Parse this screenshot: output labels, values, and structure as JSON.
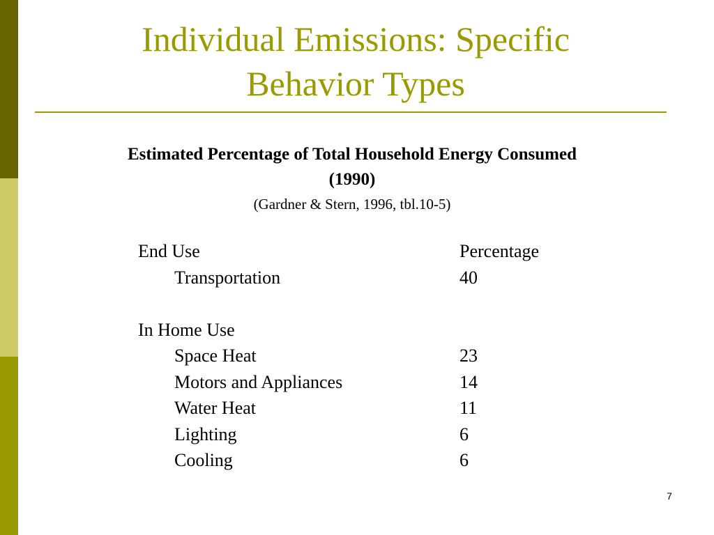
{
  "slide": {
    "title_lines": [
      "Individual Emissions:  Specific",
      "Behavior Types"
    ],
    "subtitle_lines": [
      "Estimated Percentage of Total Household Energy Consumed",
      "(1990)"
    ],
    "citation": "(Gardner & Stern, 1996, tbl.10-5)",
    "page_number": "7",
    "colors": {
      "accent": "#999900",
      "bar_dark": "#666600",
      "bar_light": "#cccc66",
      "bar_base": "#999900"
    }
  },
  "table": {
    "header": {
      "label": "End Use",
      "value": "Percentage"
    },
    "transport": {
      "label": "Transportation",
      "value": "40"
    },
    "in_home_heading": "In Home Use",
    "in_home_rows": [
      {
        "label": "Space Heat",
        "value": "23"
      },
      {
        "label": "Motors and Appliances",
        "value": "14"
      },
      {
        "label": "Water Heat",
        "value": "11"
      },
      {
        "label": "Lighting",
        "value": "6"
      },
      {
        "label": "Cooling",
        "value": "6"
      }
    ]
  }
}
